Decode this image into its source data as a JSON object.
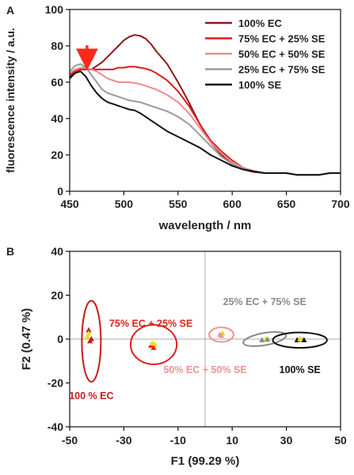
{
  "chart_data": [
    {
      "panel_label": "A",
      "type": "line",
      "xlabel": "wavelength / nm",
      "ylabel": "fluorescence intensity / a.u.",
      "xlim": [
        450,
        700
      ],
      "ylim": [
        0,
        100
      ],
      "xticks": [
        450,
        500,
        550,
        600,
        650,
        700
      ],
      "yticks": [
        0,
        20,
        40,
        60,
        80,
        100
      ],
      "legend_position": "top-right",
      "annotation": {
        "type": "arrow",
        "x": 466,
        "y": 69,
        "color": "#ff2a1a"
      },
      "series": [
        {
          "name": "100% EC",
          "color": "#8b1a1a",
          "x": [
            450,
            455,
            460,
            465,
            470,
            475,
            480,
            485,
            490,
            495,
            500,
            505,
            510,
            515,
            520,
            525,
            530,
            540,
            550,
            560,
            570,
            580,
            590,
            600,
            610,
            620,
            630,
            640,
            650,
            660,
            670,
            680,
            690,
            700
          ],
          "y": [
            63,
            66,
            67,
            67,
            67,
            69,
            71,
            74,
            77,
            80,
            83,
            85,
            86,
            85.5,
            84,
            81,
            77,
            70,
            60,
            49,
            37,
            27,
            20,
            15,
            12,
            10.5,
            10,
            10,
            10,
            9,
            9,
            9,
            10,
            10
          ]
        },
        {
          "name": "75% EC + 25% SE",
          "color": "#e01a1a",
          "x": [
            450,
            455,
            460,
            465,
            470,
            475,
            480,
            485,
            490,
            495,
            500,
            505,
            510,
            515,
            520,
            525,
            530,
            540,
            550,
            560,
            570,
            580,
            590,
            600,
            610,
            620,
            630,
            640,
            650,
            660,
            670,
            680,
            690,
            700
          ],
          "y": [
            64,
            66,
            67,
            67,
            67,
            67,
            67,
            67,
            67,
            68,
            68,
            68.5,
            68.5,
            68,
            67.5,
            66.5,
            65,
            61,
            55,
            47,
            37,
            28,
            22,
            17,
            13,
            11,
            10,
            10,
            10,
            9,
            9,
            9,
            10,
            10
          ]
        },
        {
          "name": "50% EC + 50% SE",
          "color": "#f08a8a",
          "x": [
            450,
            455,
            460,
            465,
            470,
            475,
            480,
            485,
            490,
            495,
            500,
            505,
            510,
            515,
            520,
            525,
            530,
            540,
            550,
            560,
            570,
            580,
            590,
            600,
            610,
            620,
            630,
            640,
            650,
            660,
            670,
            680,
            690,
            700
          ],
          "y": [
            65,
            67,
            68,
            68,
            67,
            66,
            64,
            62,
            61,
            60,
            60,
            60,
            59.5,
            59,
            58,
            57,
            56,
            53,
            49,
            43,
            35,
            27,
            21,
            16,
            13,
            11,
            10,
            10,
            10,
            9,
            9,
            9,
            10,
            10
          ]
        },
        {
          "name": "25% EC + 75% SE",
          "color": "#9a9a9a",
          "x": [
            450,
            455,
            460,
            465,
            470,
            475,
            480,
            485,
            490,
            495,
            500,
            505,
            510,
            515,
            520,
            525,
            530,
            540,
            550,
            560,
            570,
            580,
            590,
            600,
            610,
            620,
            630,
            640,
            650,
            660,
            670,
            680,
            690,
            700
          ],
          "y": [
            66,
            69,
            70,
            68,
            64,
            60,
            56,
            54,
            53,
            52,
            51,
            50,
            49.5,
            49,
            48,
            47,
            46,
            44,
            41,
            37,
            31,
            25,
            19,
            15,
            12.5,
            11,
            10,
            10,
            10,
            9,
            9,
            9,
            10,
            10
          ]
        },
        {
          "name": "100% SE",
          "color": "#111111",
          "x": [
            450,
            455,
            460,
            465,
            470,
            475,
            480,
            485,
            490,
            495,
            500,
            505,
            510,
            515,
            520,
            525,
            530,
            540,
            550,
            560,
            570,
            580,
            590,
            600,
            610,
            620,
            630,
            640,
            650,
            660,
            670,
            680,
            690,
            700
          ],
          "y": [
            62,
            65,
            66,
            63,
            58,
            54,
            51,
            49,
            48,
            47,
            46,
            45,
            44.5,
            43,
            41,
            39,
            37,
            33,
            30,
            27,
            24,
            20,
            17,
            14,
            12,
            11,
            10,
            10,
            10,
            9,
            9,
            9,
            10,
            10
          ]
        }
      ]
    },
    {
      "panel_label": "B",
      "type": "scatter",
      "xlabel": "F1 (99.29 %)",
      "ylabel": "F2 (0.47 %)",
      "xlim": [
        -50,
        50
      ],
      "ylim": [
        -40,
        40
      ],
      "xticks": [
        -50,
        -30,
        -10,
        10,
        30,
        50
      ],
      "yticks": [
        -40,
        -20,
        0,
        20,
        40
      ],
      "groups": [
        {
          "name": "100 % EC",
          "color": "#c81a1a",
          "label_color": "#c81a1a",
          "ellipse": {
            "cx": -42,
            "cy": -1,
            "rx": 3.5,
            "ry": 18.5
          },
          "points": [
            [
              -43,
              4
            ],
            [
              -43.5,
              1
            ],
            [
              -42.5,
              -1
            ],
            [
              -43,
              2.5
            ],
            [
              -42,
              0
            ]
          ]
        },
        {
          "name": "75% EC + 25% SE",
          "color": "#e02020",
          "label_color": "#e02020",
          "ellipse": {
            "cx": -19,
            "cy": -2.5,
            "rx": 8.5,
            "ry": 9
          },
          "points": [
            [
              -20,
              -3
            ],
            [
              -18.5,
              -2.5
            ],
            [
              -19,
              -4
            ],
            [
              -19.5,
              -2
            ]
          ]
        },
        {
          "name": "50% EC + 50% SE",
          "color": "#f09090",
          "label_color": "#f09090",
          "ellipse": {
            "cx": 6,
            "cy": 2,
            "rx": 4.5,
            "ry": 3.3
          },
          "points": [
            [
              5.5,
              2
            ],
            [
              6.5,
              2.5
            ],
            [
              6,
              1.5
            ]
          ]
        },
        {
          "name": "25% EC + 75% SE",
          "color": "#8a8a8a",
          "label_color": "#8a8a8a",
          "ellipse": {
            "cx": 22,
            "cy": 0,
            "rx": 8,
            "ry": 2.8,
            "rotate": -10
          },
          "points": [
            [
              21,
              -0.5
            ],
            [
              22.5,
              0
            ],
            [
              23,
              -0.3
            ]
          ]
        },
        {
          "name": "100% SE",
          "color": "#111111",
          "label_color": "#111111",
          "ellipse": {
            "cx": 35,
            "cy": -0.5,
            "rx": 10,
            "ry": 3.5
          },
          "points": [
            [
              34,
              -0.5
            ],
            [
              35.5,
              -0.3
            ],
            [
              36.5,
              -0.5
            ],
            [
              35,
              0
            ]
          ]
        }
      ]
    }
  ]
}
